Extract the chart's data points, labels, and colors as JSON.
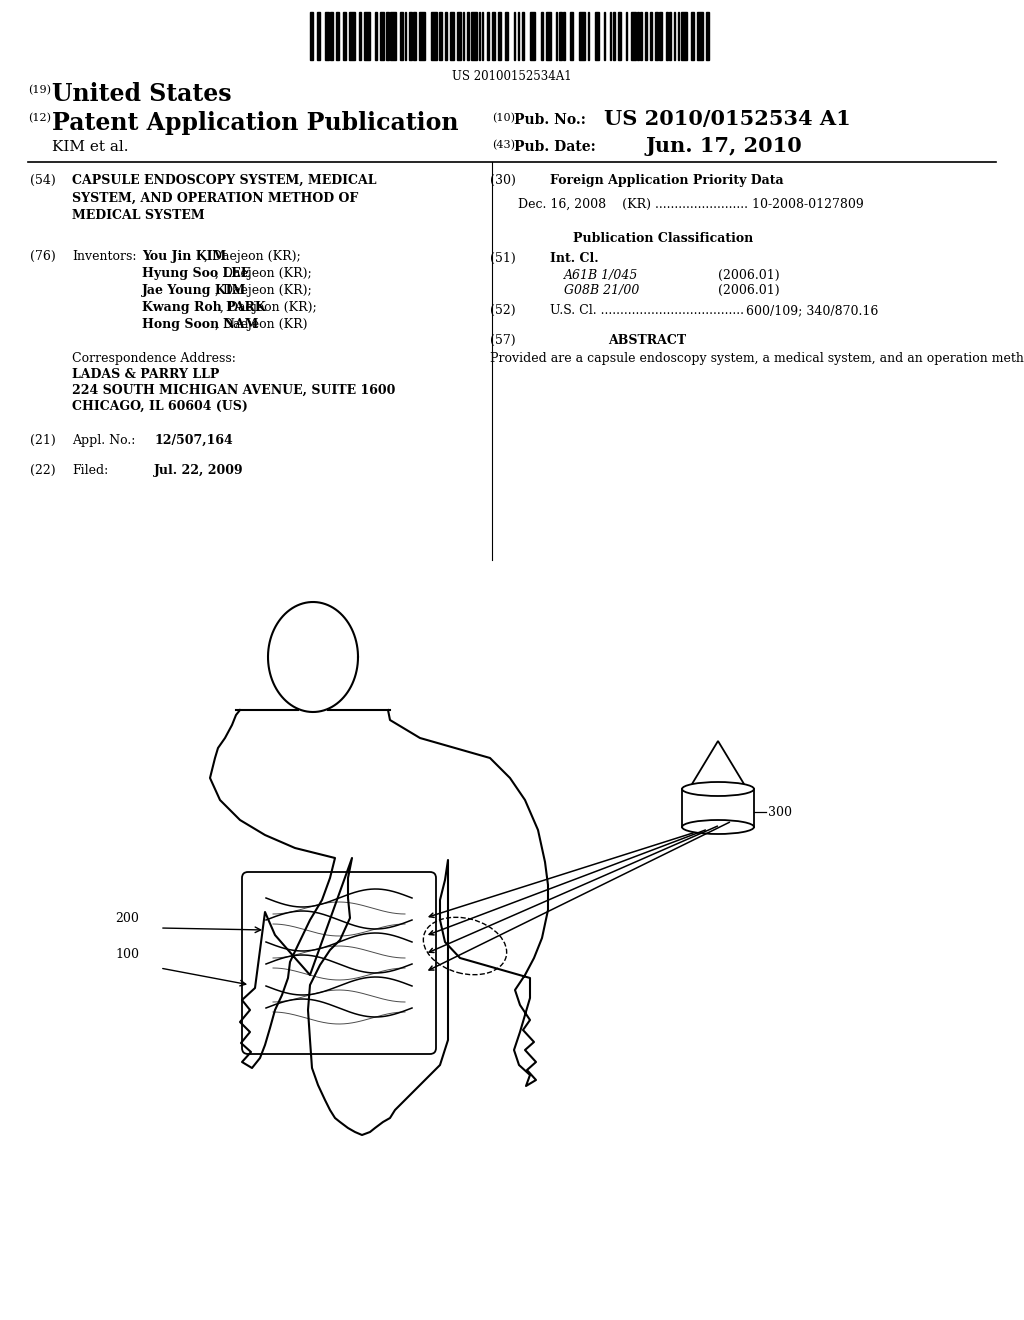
{
  "background_color": "#ffffff",
  "barcode_text": "US 20100152534A1",
  "header_line1_num": "(19)",
  "header_line1_text": "United States",
  "header_line2_num": "(12)",
  "header_line2_text": "Patent Application Publication",
  "header_right1_num": "(10)",
  "header_right1_label": "Pub. No.:",
  "header_right1_value": "US 2010/0152534 A1",
  "header_line3_text": "KIM et al.",
  "header_right2_num": "(43)",
  "header_right2_label": "Pub. Date:",
  "header_right2_value": "Jun. 17, 2010",
  "section54_num": "(54)",
  "section54_title": "CAPSULE ENDOSCOPY SYSTEM, MEDICAL\nSYSTEM, AND OPERATION METHOD OF\nMEDICAL SYSTEM",
  "section76_num": "(76)",
  "section76_label": "Inventors:",
  "section76_inventors": [
    [
      "You Jin KIM",
      ", Daejeon (KR);"
    ],
    [
      "Hyung Soo LEE",
      ", Daejeon (KR);"
    ],
    [
      "Jae Young KIM",
      ", Daejeon (KR);"
    ],
    [
      "Kwang Roh PARK",
      ", Daejeon (KR);"
    ],
    [
      "Hong Soon NAM",
      ", Daejeon (KR)"
    ]
  ],
  "corr_label": "Correspondence Address:",
  "corr_line1": "LADAS & PARRY LLP",
  "corr_line2": "224 SOUTH MICHIGAN AVENUE, SUITE 1600",
  "corr_line3": "CHICAGO, IL 60604 (US)",
  "section21_num": "(21)",
  "section21_label": "Appl. No.:",
  "section21_value": "12/507,164",
  "section22_num": "(22)",
  "section22_label": "Filed:",
  "section22_value": "Jul. 22, 2009",
  "section30_num": "(30)",
  "section30_title": "Foreign Application Priority Data",
  "section30_data": "Dec. 16, 2008    (KR) ........................ 10-2008-0127809",
  "pubclass_title": "Publication Classification",
  "section51_num": "(51)",
  "section51_label": "Int. Cl.",
  "section51_class1": "A61B 1/045",
  "section51_year1": "(2006.01)",
  "section51_class2": "G08B 21/00",
  "section51_year2": "(2006.01)",
  "section52_num": "(52)",
  "section52_label": "U.S. Cl.",
  "section52_dots": " .....................................",
  "section52_value": "600/109; 340/870.16",
  "section57_num": "(57)",
  "section57_title": "ABSTRACT",
  "abstract_text": "Provided are a capsule endoscopy system, a medical system, and an operation method of the medical system. A control device outside a human body and two or more implantable medical devices (e.g. capsule endoscopes) form a network with each other, and the two or more implantable medical devices divisionally perform investigation, identification, and treatment while cooperating with each other, by controlling the control device outside the human body.",
  "label_100": "100",
  "label_200": "200",
  "label_300": "300"
}
